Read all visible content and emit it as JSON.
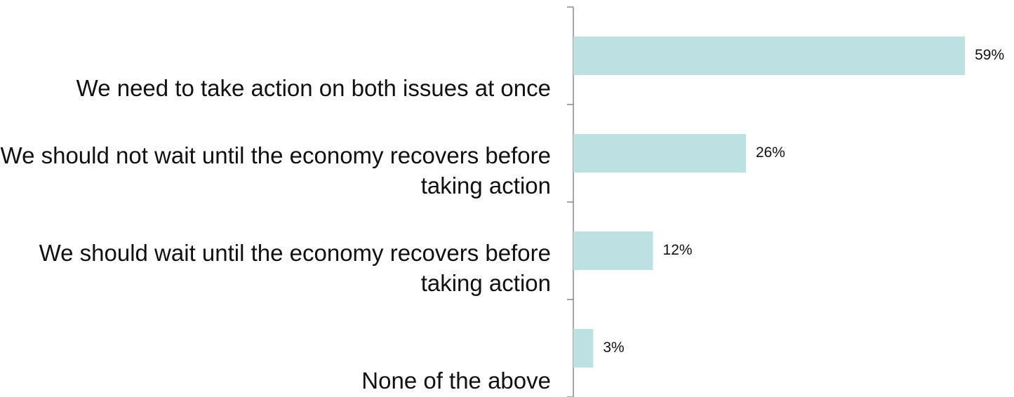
{
  "chart_data": {
    "type": "bar",
    "orientation": "horizontal",
    "categories": [
      "We need to take action on both issues at once",
      "We should not wait until the economy recovers before taking action",
      "We should wait until the economy recovers before taking action",
      "None of the above"
    ],
    "values": [
      59,
      26,
      12,
      3
    ],
    "value_labels": [
      "59%",
      "26%",
      "12%",
      "3%"
    ],
    "color": "#bde0e3"
  }
}
